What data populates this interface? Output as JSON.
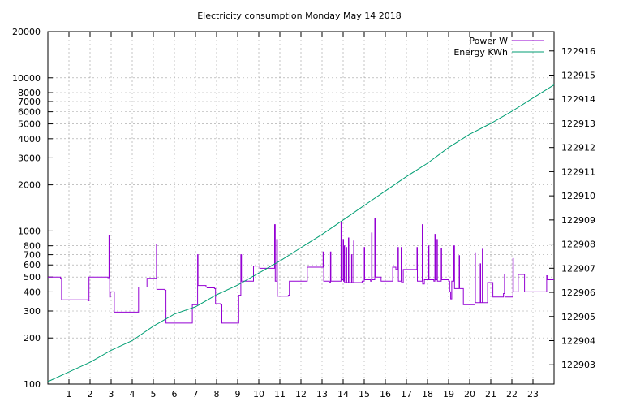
{
  "chart_data": {
    "type": "line",
    "title": "Electricity consumption Monday May 14 2018",
    "xlabel": "",
    "ylabel": "",
    "y2label": "",
    "xlim": [
      0,
      24
    ],
    "ylim": [
      100,
      20000
    ],
    "yscale": "log",
    "y2lim": [
      122902.2,
      122916.8
    ],
    "grid": true,
    "legend_position": "top-right",
    "x_ticks": [
      1,
      2,
      3,
      4,
      5,
      6,
      7,
      8,
      9,
      10,
      11,
      12,
      13,
      14,
      15,
      16,
      17,
      18,
      19,
      20,
      21,
      22,
      23
    ],
    "y_ticks": [
      100,
      200,
      300,
      400,
      500,
      600,
      700,
      800,
      1000,
      2000,
      3000,
      4000,
      5000,
      6000,
      7000,
      8000,
      10000,
      20000
    ],
    "y2_ticks": [
      122903,
      122904,
      122905,
      122906,
      122907,
      122908,
      122909,
      122910,
      122911,
      122912,
      122913,
      122914,
      122915,
      122916
    ],
    "series": [
      {
        "name": "Power W",
        "axis": "left",
        "color": "#9400d3",
        "step": true,
        "points": [
          [
            0.0,
            500
          ],
          [
            0.6,
            490
          ],
          [
            0.65,
            355
          ],
          [
            1.9,
            350
          ],
          [
            1.95,
            500
          ],
          [
            2.85,
            495
          ],
          [
            2.9,
            930
          ],
          [
            2.93,
            370
          ],
          [
            2.96,
            400
          ],
          [
            3.15,
            295
          ],
          [
            4.25,
            295
          ],
          [
            4.3,
            430
          ],
          [
            4.65,
            430
          ],
          [
            4.7,
            490
          ],
          [
            5.1,
            490
          ],
          [
            5.15,
            820
          ],
          [
            5.17,
            415
          ],
          [
            5.55,
            410
          ],
          [
            5.6,
            250
          ],
          [
            6.8,
            250
          ],
          [
            6.85,
            330
          ],
          [
            7.05,
            330
          ],
          [
            7.1,
            700
          ],
          [
            7.12,
            440
          ],
          [
            7.5,
            430
          ],
          [
            7.55,
            425
          ],
          [
            7.9,
            420
          ],
          [
            7.95,
            335
          ],
          [
            8.2,
            330
          ],
          [
            8.25,
            250
          ],
          [
            9.0,
            250
          ],
          [
            9.05,
            380
          ],
          [
            9.15,
            700
          ],
          [
            9.18,
            470
          ],
          [
            9.7,
            470
          ],
          [
            9.75,
            590
          ],
          [
            10.05,
            570
          ],
          [
            10.7,
            570
          ],
          [
            10.75,
            1100
          ],
          [
            10.78,
            470
          ],
          [
            10.85,
            880
          ],
          [
            10.88,
            375
          ],
          [
            11.4,
            380
          ],
          [
            11.45,
            470
          ],
          [
            12.25,
            470
          ],
          [
            12.3,
            580
          ],
          [
            12.9,
            580
          ],
          [
            13.05,
            730
          ],
          [
            13.08,
            470
          ],
          [
            13.35,
            460
          ],
          [
            13.4,
            730
          ],
          [
            13.42,
            470
          ],
          [
            13.85,
            470
          ],
          [
            13.9,
            1150
          ],
          [
            13.92,
            480
          ],
          [
            14.0,
            880
          ],
          [
            14.02,
            470
          ],
          [
            14.05,
            800
          ],
          [
            14.07,
            460
          ],
          [
            14.15,
            780
          ],
          [
            14.17,
            460
          ],
          [
            14.25,
            900
          ],
          [
            14.27,
            460
          ],
          [
            14.4,
            700
          ],
          [
            14.42,
            460
          ],
          [
            14.5,
            860
          ],
          [
            14.52,
            460
          ],
          [
            14.9,
            470
          ],
          [
            15.0,
            780
          ],
          [
            15.02,
            480
          ],
          [
            15.3,
            470
          ],
          [
            15.35,
            970
          ],
          [
            15.37,
            480
          ],
          [
            15.5,
            1200
          ],
          [
            15.52,
            500
          ],
          [
            15.8,
            470
          ],
          [
            16.3,
            470
          ],
          [
            16.35,
            580
          ],
          [
            16.5,
            560
          ],
          [
            16.6,
            780
          ],
          [
            16.62,
            470
          ],
          [
            16.75,
            780
          ],
          [
            16.77,
            460
          ],
          [
            16.85,
            560
          ],
          [
            17.45,
            560
          ],
          [
            17.5,
            780
          ],
          [
            17.52,
            470
          ],
          [
            17.6,
            470
          ],
          [
            17.75,
            1100
          ],
          [
            17.77,
            450
          ],
          [
            17.85,
            480
          ],
          [
            18.05,
            800
          ],
          [
            18.07,
            480
          ],
          [
            18.3,
            470
          ],
          [
            18.35,
            950
          ],
          [
            18.37,
            480
          ],
          [
            18.45,
            880
          ],
          [
            18.47,
            470
          ],
          [
            18.65,
            770
          ],
          [
            18.67,
            480
          ],
          [
            19.0,
            470
          ],
          [
            19.05,
            400
          ],
          [
            19.1,
            360
          ],
          [
            19.15,
            470
          ],
          [
            19.25,
            800
          ],
          [
            19.28,
            420
          ],
          [
            19.5,
            690
          ],
          [
            19.52,
            420
          ],
          [
            19.65,
            420
          ],
          [
            19.7,
            330
          ],
          [
            20.2,
            330
          ],
          [
            20.25,
            720
          ],
          [
            20.27,
            340
          ],
          [
            20.5,
            610
          ],
          [
            20.52,
            340
          ],
          [
            20.6,
            760
          ],
          [
            20.62,
            340
          ],
          [
            20.8,
            340
          ],
          [
            20.85,
            460
          ],
          [
            21.05,
            460
          ],
          [
            21.1,
            370
          ],
          [
            21.55,
            370
          ],
          [
            21.6,
            390
          ],
          [
            21.65,
            520
          ],
          [
            21.67,
            370
          ],
          [
            21.95,
            370
          ],
          [
            22.05,
            660
          ],
          [
            22.07,
            400
          ],
          [
            22.3,
            520
          ],
          [
            22.55,
            520
          ],
          [
            22.6,
            400
          ],
          [
            23.0,
            400
          ],
          [
            23.6,
            400
          ],
          [
            23.65,
            510
          ],
          [
            23.67,
            480
          ],
          [
            23.8,
            480
          ]
        ]
      },
      {
        "name": "Energy KWh",
        "axis": "right",
        "color": "#009e73",
        "step": false,
        "points": [
          [
            0.0,
            122902.3
          ],
          [
            1.0,
            122902.7
          ],
          [
            2.0,
            122903.1
          ],
          [
            3.0,
            122903.6
          ],
          [
            4.0,
            122904.0
          ],
          [
            5.0,
            122904.6
          ],
          [
            6.0,
            122905.1
          ],
          [
            7.0,
            122905.4
          ],
          [
            8.0,
            122905.9
          ],
          [
            9.0,
            122906.3
          ],
          [
            10.0,
            122906.8
          ],
          [
            11.0,
            122907.3
          ],
          [
            12.0,
            122907.85
          ],
          [
            13.0,
            122908.4
          ],
          [
            14.0,
            122909.0
          ],
          [
            15.0,
            122909.6
          ],
          [
            16.0,
            122910.2
          ],
          [
            17.0,
            122910.8
          ],
          [
            18.0,
            122911.35
          ],
          [
            19.0,
            122912.0
          ],
          [
            20.0,
            122912.55
          ],
          [
            21.0,
            122913.0
          ],
          [
            22.0,
            122913.5
          ],
          [
            23.0,
            122914.05
          ],
          [
            24.0,
            122914.6
          ]
        ]
      }
    ]
  }
}
